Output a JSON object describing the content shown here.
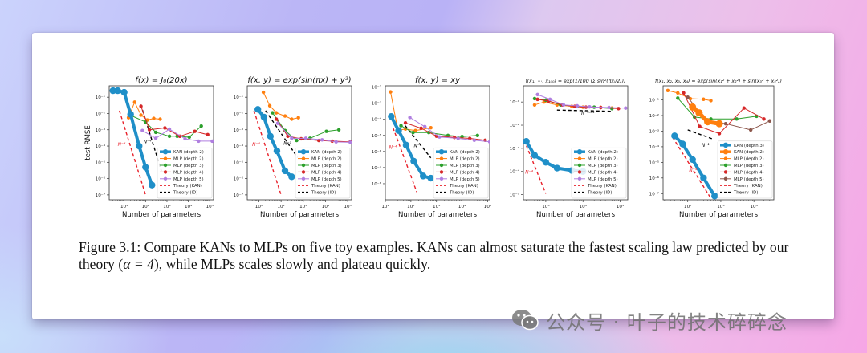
{
  "figure": {
    "caption_prefix": "Figure 3.1: Compare KANs to MLPs on five toy examples. KANs can almost saturate the fastest scaling law predicted by our theory (",
    "caption_math": "α = 4",
    "caption_suffix": "), while MLPs scales slowly and plateau quickly."
  },
  "watermark": {
    "icon": "wechat-icon",
    "text": "公众号 · 叶子的技术碎碎念"
  },
  "colors": {
    "kan": "#1f8fc8",
    "kan2": "#ff7f0e",
    "mlp2": "#ff7f0e",
    "mlp3": "#2ca02c",
    "mlp4": "#d62728",
    "mlp5": "#b07fe0",
    "mlp5_brown": "#8c564b",
    "theory_kan": "#e8202a",
    "theory_id": "#000000"
  },
  "chart_data": [
    {
      "type": "line",
      "title": "f(x) = J₀(20x)",
      "xlabel": "Number of parameters",
      "ylabel": "test RMSE",
      "xscale": "log",
      "yscale": "log",
      "xlim": [
        2,
        150000
      ],
      "ylim": [
        5e-08,
        0.5
      ],
      "xticks": [
        "10¹",
        "10²",
        "10³",
        "10⁴",
        "10⁵"
      ],
      "xtick_values": [
        10,
        100,
        1000,
        10000,
        100000
      ],
      "yticks": [
        "10⁻⁷",
        "10⁻⁶",
        "10⁻⁵",
        "10⁻⁴",
        "10⁻³",
        "10⁻²",
        "10⁻¹"
      ],
      "ytick_values": [
        1e-07,
        1e-06,
        1e-05,
        0.0001,
        0.001,
        0.01,
        0.1
      ],
      "legend": "lower-right",
      "series": [
        {
          "name": "KAN (depth 2)",
          "style": "kan",
          "x": [
            3,
            5,
            10,
            20,
            50,
            100,
            200
          ],
          "y": [
            0.25,
            0.25,
            0.2,
            0.009,
            0.0001,
            5e-06,
            4e-07
          ]
        },
        {
          "name": "MLP (depth 2)",
          "style": "mlp2",
          "x": [
            16,
            31,
            61,
            121,
            241,
            481
          ],
          "y": [
            0.0055,
            0.05,
            0.008,
            0.004,
            0.005,
            0.0045
          ]
        },
        {
          "name": "MLP (depth 3)",
          "style": "mlp3",
          "x": [
            21,
            101,
            301,
            1301,
            3001,
            11001,
            40001
          ],
          "y": [
            0.0075,
            0.003,
            0.0007,
            0.0004,
            0.0004,
            0.00035,
            0.0017
          ]
        },
        {
          "name": "MLP (depth 4)",
          "style": "mlp4",
          "x": [
            61,
            151,
            801,
            4001,
            20001,
            80001
          ],
          "y": [
            0.028,
            0.001,
            0.0013,
            0.0004,
            0.0008,
            0.0005
          ]
        },
        {
          "name": "MLP (depth 5)",
          "style": "mlp5",
          "x": [
            71,
            301,
            1301,
            7001,
            30001,
            130001
          ],
          "y": [
            0.0009,
            0.0003,
            0.0011,
            0.00028,
            0.0002,
            0.0002
          ]
        },
        {
          "name": "Theory (KAN)",
          "style": "theory_kan",
          "x": [
            6,
            100
          ],
          "y": [
            0.015,
            1e-07
          ]
        },
        {
          "name": "Theory (ID)",
          "style": "theory_id",
          "x": [
            60,
            550
          ],
          "y": [
            0.035,
            3e-06
          ]
        }
      ],
      "annotations": [
        {
          "text": "N⁻⁴",
          "x": 5,
          "y": 0.0001,
          "color": "theory_kan"
        },
        {
          "text": "N⁻⁴",
          "x": 80,
          "y": 0.00015,
          "color": "theory_id"
        }
      ]
    },
    {
      "type": "line",
      "title": "f(x, y) = exp(sin(πx) + y²)",
      "xlabel": "Number of parameters",
      "ylabel": "",
      "xscale": "log",
      "yscale": "log",
      "xlim": [
        3,
        150000
      ],
      "ylim": [
        5e-08,
        0.5
      ],
      "xticks": [
        "10¹",
        "10²",
        "10³",
        "10⁴",
        "10⁵"
      ],
      "xtick_values": [
        10,
        100,
        1000,
        10000,
        100000
      ],
      "yticks": [
        "10⁻⁷",
        "10⁻⁶",
        "10⁻⁵",
        "10⁻⁴",
        "10⁻³",
        "10⁻²",
        "10⁻¹"
      ],
      "ytick_values": [
        1e-07,
        1e-06,
        1e-05,
        0.0001,
        0.001,
        0.01,
        0.1
      ],
      "legend": "lower-right",
      "series": [
        {
          "name": "KAN (depth 2)",
          "style": "kan",
          "x": [
            9,
            17,
            33,
            65,
            150,
            300
          ],
          "y": [
            0.018,
            0.006,
            0.0004,
            5e-05,
            3e-06,
            1.3e-06
          ]
        },
        {
          "name": "MLP (depth 2)",
          "style": "mlp2",
          "x": [
            16,
            31,
            61,
            151,
            301,
            601
          ],
          "y": [
            0.2,
            0.03,
            0.011,
            0.007,
            0.0045,
            0.0055
          ]
        },
        {
          "name": "MLP (depth 3)",
          "style": "mlp3",
          "x": [
            41,
            151,
            501,
            2001,
            11001,
            40001
          ],
          "y": [
            0.011,
            0.0009,
            0.00022,
            0.0003,
            0.0008,
            0.001
          ]
        },
        {
          "name": "MLP (depth 4)",
          "style": "mlp4",
          "x": [
            61,
            201,
            801,
            5001,
            20001,
            130001
          ],
          "y": [
            0.0045,
            0.0004,
            0.00028,
            0.00022,
            0.0002,
            0.00018
          ]
        },
        {
          "name": "MLP (depth 5)",
          "style": "mlp5",
          "x": [
            71,
            301,
            1301,
            7001,
            30001,
            130001
          ],
          "y": [
            0.0025,
            0.0003,
            0.0003,
            0.00024,
            0.00018,
            0.00017
          ]
        },
        {
          "name": "Theory (KAN)",
          "style": "theory_kan",
          "x": [
            6,
            100
          ],
          "y": [
            0.015,
            1e-07
          ]
        },
        {
          "name": "Theory (ID)",
          "style": "theory_id",
          "x": [
            20,
            550
          ],
          "y": [
            0.015,
            2e-05
          ]
        }
      ],
      "annotations": [
        {
          "text": "N⁻⁴",
          "x": 5,
          "y": 0.0001,
          "color": "theory_kan"
        },
        {
          "text": "N⁻²",
          "x": 130,
          "y": 0.00012,
          "color": "theory_id"
        }
      ]
    },
    {
      "type": "line",
      "title": "f(x, y) = xy",
      "xlabel": "Number of parameters",
      "ylabel": "",
      "xscale": "log",
      "yscale": "log",
      "xlim": [
        10,
        120000
      ],
      "ylim": [
        1e-09,
        0.012
      ],
      "xticks": [
        "10¹",
        "10²",
        "10³",
        "10⁴",
        "10⁵"
      ],
      "xtick_values": [
        10,
        100,
        1000,
        10000,
        100000
      ],
      "yticks": [
        "10⁻⁸",
        "10⁻⁷",
        "10⁻⁶",
        "10⁻⁵",
        "10⁻⁴",
        "10⁻³",
        "10⁻²"
      ],
      "ytick_values": [
        1e-08,
        1e-07,
        1e-06,
        1e-05,
        0.0001,
        0.001,
        0.01
      ],
      "legend": "lower-right",
      "series": [
        {
          "name": "KAN (depth 2)",
          "style": "kan",
          "x": [
            17,
            33,
            65,
            129,
            300,
            600
          ],
          "y": [
            0.00015,
            2e-05,
            2.5e-06,
            2.5e-07,
            3e-08,
            2.2e-08
          ]
        },
        {
          "name": "MLP (depth 2)",
          "style": "mlp2",
          "x": [
            16,
            31,
            61,
            151,
            601
          ],
          "y": [
            0.005,
            2e-05,
            2.5e-05,
            2e-05,
            3e-05
          ]
        },
        {
          "name": "MLP (depth 3)",
          "style": "mlp3",
          "x": [
            41,
            121,
            501,
            2801,
            10001,
            40001
          ],
          "y": [
            4e-05,
            1.5e-05,
            1.5e-05,
            1e-05,
            8.5e-06,
            1e-05
          ]
        },
        {
          "name": "MLP (depth 4)",
          "style": "mlp4",
          "x": [
            61,
            251,
            1001,
            5001,
            20001,
            80001
          ],
          "y": [
            6e-05,
            2.8e-05,
            9e-06,
            7.5e-06,
            6.5e-06,
            5e-06
          ]
        },
        {
          "name": "MLP (depth 5)",
          "style": "mlp5",
          "x": [
            91,
            351,
            1301,
            7001,
            30001,
            120001
          ],
          "y": [
            0.00013,
            3.5e-05,
            8e-06,
            6.5e-06,
            5e-06,
            4e-06
          ]
        },
        {
          "name": "Theory (KAN)",
          "style": "theory_kan",
          "x": [
            20,
            170
          ],
          "y": [
            3e-05,
            3e-09
          ]
        },
        {
          "name": "Theory (ID)",
          "style": "theory_id",
          "x": [
            60,
            600
          ],
          "y": [
            4e-05,
            4e-07
          ]
        }
      ],
      "annotations": [
        {
          "text": "N⁻⁴",
          "x": 14,
          "y": 1.5e-06,
          "color": "theory_kan"
        },
        {
          "text": "N⁻²",
          "x": 130,
          "y": 1.8e-06,
          "color": "theory_id"
        }
      ]
    },
    {
      "type": "line",
      "title": "f(x₁, ⋯, x₁₀₀) = exp(1/100 (Σ sin²(πxᵢ/2)))",
      "xlabel": "Number of parameters",
      "ylabel": "",
      "xscale": "log",
      "yscale": "log",
      "xlim": [
        250,
        160000
      ],
      "ylim": [
        6e-06,
        0.5
      ],
      "xticks": [
        "10³",
        "10⁴",
        "10⁵"
      ],
      "xtick_values": [
        1000,
        10000,
        100000
      ],
      "yticks": [
        "10⁻⁵",
        "10⁻⁴",
        "10⁻³",
        "10⁻²",
        "10⁻¹"
      ],
      "ytick_values": [
        1e-05,
        0.0001,
        0.001,
        0.01,
        0.1
      ],
      "legend": "lower-right",
      "series": [
        {
          "name": "KAN (depth 2)",
          "style": "kan",
          "x": [
            300,
            500,
            1000,
            2000,
            5000,
            10000
          ],
          "y": [
            0.002,
            0.0005,
            0.00025,
            0.00014,
            0.00011,
            0.0001
          ]
        },
        {
          "name": "MLP (depth 2)",
          "style": "mlp2",
          "x": [
            500,
            900,
            2000,
            5000,
            10000,
            30000,
            60000
          ],
          "y": [
            0.075,
            0.1,
            0.075,
            0.065,
            0.06,
            0.058,
            0.055
          ]
        },
        {
          "name": "MLP (depth 3)",
          "style": "mlp3",
          "x": [
            500,
            1000,
            2500,
            7000,
            20000,
            60000
          ],
          "y": [
            0.14,
            0.12,
            0.075,
            0.065,
            0.06,
            0.052
          ]
        },
        {
          "name": "MLP (depth 4)",
          "style": "mlp4",
          "x": [
            600,
            1200,
            2800,
            6000,
            12000,
            30000,
            90000
          ],
          "y": [
            0.13,
            0.11,
            0.075,
            0.065,
            0.06,
            0.058,
            0.052
          ]
        },
        {
          "name": "MLP (depth 5)",
          "style": "mlp5",
          "x": [
            600,
            1300,
            3000,
            7000,
            15000,
            50000,
            140000
          ],
          "y": [
            0.21,
            0.13,
            0.075,
            0.068,
            0.062,
            0.058,
            0.055
          ]
        },
        {
          "name": "Theory (KAN)",
          "style": "theory_kan",
          "x": [
            300,
            1000
          ],
          "y": [
            0.0013,
            1.1e-05
          ]
        },
        {
          "name": "Theory (ID)",
          "style": "theory_id",
          "x": [
            2000,
            60000
          ],
          "y": [
            0.045,
            0.04
          ]
        }
      ],
      "annotations": [
        {
          "text": "N⁻⁴",
          "x": 280,
          "y": 8e-05,
          "color": "theory_kan"
        },
        {
          "text": "N⁻⁰·⁰⁴",
          "x": 9000,
          "y": 0.028,
          "color": "theory_id"
        }
      ]
    },
    {
      "type": "line",
      "title": "f(x₁, x₂, x₃, x₄) = exp(sin(x₁² + x₂²) + sin(x₃² + x₄²))",
      "xlabel": "Number of parameters",
      "ylabel": "",
      "xscale": "log",
      "yscale": "log",
      "xlim": [
        18,
        40000
      ],
      "ylim": [
        4e-08,
        0.8
      ],
      "xticks": [
        "10²",
        "10³",
        "10⁴"
      ],
      "xtick_values": [
        100,
        1000,
        10000
      ],
      "yticks": [
        "10⁻⁷",
        "10⁻⁶",
        "10⁻⁵",
        "10⁻⁴",
        "10⁻³",
        "10⁻²",
        "10⁻¹"
      ],
      "ytick_values": [
        1e-07,
        1e-06,
        1e-05,
        0.0001,
        0.001,
        0.01,
        0.1
      ],
      "legend": "lower-right",
      "series": [
        {
          "name": "KAN (depth 3)",
          "style": "kan",
          "x": [
            40,
            70,
            140,
            300,
            650
          ],
          "y": [
            0.0005,
            0.00015,
            1.5e-05,
            1e-06,
            7e-08
          ]
        },
        {
          "name": "KAN (depth 2)",
          "style": "kan2",
          "x": [
            140,
            220,
            400,
            900
          ],
          "y": [
            0.035,
            0.015,
            0.004,
            0.003
          ]
        },
        {
          "name": "MLP (depth 2)",
          "style": "mlp2",
          "x": [
            25,
            50,
            120,
            300,
            500
          ],
          "y": [
            0.4,
            0.28,
            0.12,
            0.11,
            0.09
          ]
        },
        {
          "name": "MLP (depth 3)",
          "style": "mlp3",
          "x": [
            50,
            160,
            500,
            3000,
            12000
          ],
          "y": [
            0.13,
            0.008,
            0.006,
            0.006,
            0.009
          ]
        },
        {
          "name": "MLP (depth 4)",
          "style": "mlp4",
          "x": [
            75,
            230,
            900,
            5000,
            20000
          ],
          "y": [
            0.28,
            0.002,
            0.0007,
            0.03,
            0.006
          ]
        },
        {
          "name": "MLP (depth 5)",
          "style": "mlp5_brown",
          "x": [
            100,
            350,
            1400,
            8000,
            30000
          ],
          "y": [
            0.15,
            0.005,
            0.003,
            0.0012,
            0.0045
          ]
        },
        {
          "name": "Theory (KAN)",
          "style": "theory_kan",
          "x": [
            35,
            500
          ],
          "y": [
            0.0004,
            5e-08
          ]
        },
        {
          "name": "Theory (ID)",
          "style": "theory_id",
          "x": [
            100,
            600
          ],
          "y": [
            0.0012,
            0.0003
          ]
        }
      ],
      "annotations": [
        {
          "text": "N⁻⁴",
          "x": 110,
          "y": 2.5e-06,
          "color": "theory_kan"
        },
        {
          "text": "N⁻¹",
          "x": 260,
          "y": 0.0001,
          "color": "theory_id"
        }
      ]
    }
  ]
}
